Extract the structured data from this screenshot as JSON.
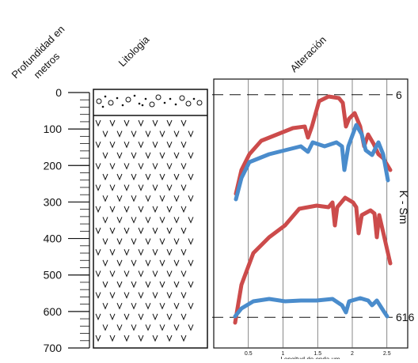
{
  "headers": {
    "depth": [
      "Profundidad en",
      "metros"
    ],
    "lithology": "Litologia",
    "alteration": "Alteración"
  },
  "depth_axis": {
    "lim": [
      0,
      700
    ],
    "ticks": [
      0,
      100,
      200,
      300,
      400,
      500,
      600,
      700
    ],
    "minor_step": 20
  },
  "alteration": {
    "xlim": [
      0,
      2.8
    ],
    "xticks": [
      0.5,
      1,
      1.5,
      2,
      2.5
    ],
    "xlabel": "Longitud de onda um",
    "markers": [
      {
        "depth": 6,
        "label": "6"
      },
      {
        "depth": 616,
        "label": "616"
      }
    ],
    "mineral": "K - Sm"
  }
}
